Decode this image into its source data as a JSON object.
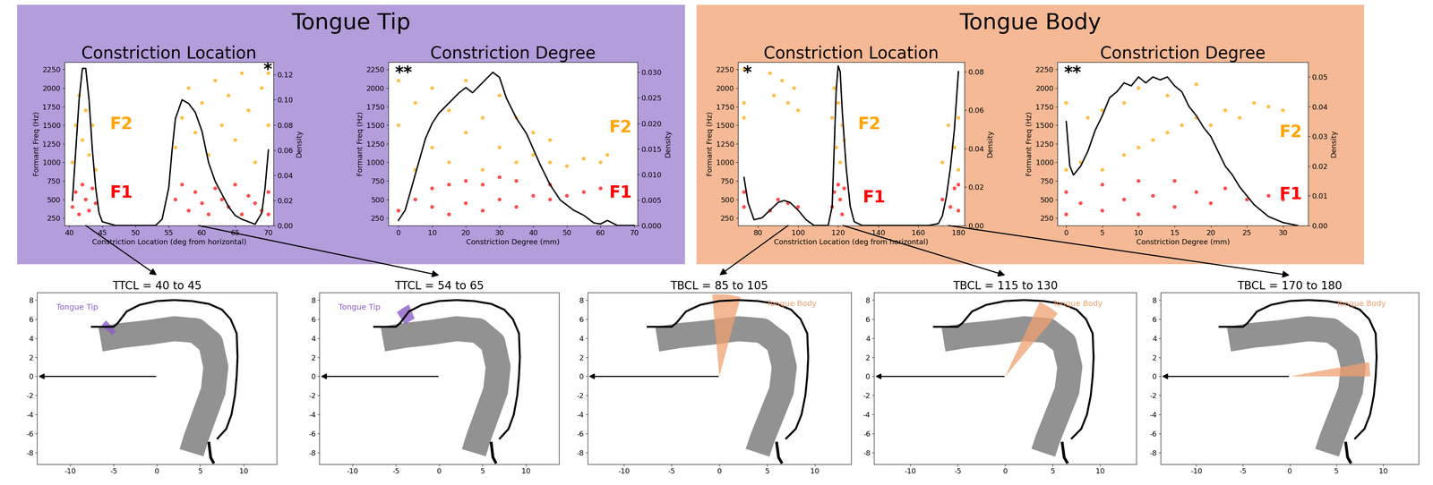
{
  "headers": [
    {
      "text": "Tongue Tip",
      "color": "#b39ddb"
    },
    {
      "text": "Tongue Body",
      "color": "#f5b995"
    }
  ],
  "chart_data": [
    {
      "type": "scatter",
      "title": "Constriction Location",
      "xlabel": "Constriction Location (deg from horizontal)",
      "ylabel": "Formant Freq (Hz)",
      "y2label": "Density",
      "xlim": [
        39.3,
        70.8
      ],
      "xticks": [
        40,
        45,
        50,
        55,
        60,
        65,
        70
      ],
      "ylim": [
        150,
        2350
      ],
      "yticks": [
        250,
        500,
        750,
        1000,
        1250,
        1500,
        1750,
        2000,
        2250
      ],
      "y2lim": [
        0,
        0.13
      ],
      "y2ticks": [
        {
          "value": 0,
          "label": "0.00"
        },
        {
          "value": 0.02,
          "label": "0.02"
        },
        {
          "value": 0.04,
          "label": "0.04"
        },
        {
          "value": 0.06,
          "label": "0.06"
        },
        {
          "value": 0.08,
          "label": "0.08"
        },
        {
          "value": 0.1,
          "label": "0.10"
        },
        {
          "value": 0.12,
          "label": "0.12"
        }
      ],
      "annotations": [
        "*"
      ],
      "series": [
        {
          "name": "F2",
          "type": "scatter",
          "color": "#ffa500",
          "x": [
            40.5,
            41,
            41.5,
            42,
            42.5,
            43,
            43.5,
            44,
            56,
            57,
            58,
            59,
            60,
            61,
            62,
            63,
            64,
            65,
            66,
            67,
            68,
            69,
            70,
            70
          ],
          "y": [
            1000,
            1500,
            1900,
            1300,
            1700,
            1100,
            1500,
            900,
            1200,
            1600,
            2000,
            1400,
            1800,
            1100,
            2100,
            1500,
            1900,
            1300,
            2200,
            1700,
            1000,
            2000,
            1500,
            2200
          ]
        },
        {
          "name": "F1",
          "type": "scatter",
          "color": "#ff0000",
          "x": [
            40.5,
            41,
            41.5,
            42,
            42.5,
            43,
            43.5,
            44,
            56,
            57,
            58,
            59,
            60,
            61,
            62,
            63,
            64,
            65,
            66,
            67,
            68,
            69,
            70,
            70
          ],
          "y": [
            400,
            600,
            300,
            700,
            500,
            350,
            650,
            450,
            500,
            700,
            350,
            600,
            450,
            300,
            650,
            500,
            400,
            700,
            300,
            550,
            450,
            350,
            600,
            300
          ]
        },
        {
          "type": "line",
          "axis": "y2",
          "color": "#000000",
          "x": [
            40.5,
            41,
            41.5,
            42,
            42.5,
            43,
            43.5,
            44,
            44.5,
            45,
            47,
            50,
            53,
            54,
            55,
            55.5,
            56,
            57,
            58,
            59,
            60,
            61,
            62,
            63,
            64,
            65,
            66,
            68,
            69,
            69.5,
            70
          ],
          "y": [
            0.02,
            0.06,
            0.1,
            0.125,
            0.125,
            0.1,
            0.06,
            0.03,
            0.01,
            0.003,
            0,
            0,
            0,
            0.005,
            0.03,
            0.06,
            0.085,
            0.1,
            0.097,
            0.09,
            0.075,
            0.05,
            0.035,
            0.025,
            0.015,
            0.008,
            0.005,
            0.001,
            0.01,
            0.03,
            0.06
          ]
        }
      ]
    },
    {
      "type": "scatter",
      "title": "Constriction Degree",
      "xlabel": "Constriction Degree (mm)",
      "ylabel": "Formant Freq (Hz)",
      "y2label": "Density",
      "xlim": [
        -3,
        71
      ],
      "xticks": [
        0,
        10,
        20,
        30,
        40,
        50,
        60,
        70
      ],
      "ylim": [
        150,
        2350
      ],
      "yticks": [
        250,
        500,
        750,
        1000,
        1250,
        1500,
        1750,
        2000,
        2250
      ],
      "y2lim": [
        0,
        0.032
      ],
      "y2ticks": [
        {
          "value": 0,
          "label": "0.000"
        },
        {
          "value": 0.005,
          "label": "0.005"
        },
        {
          "value": 0.01,
          "label": "0.010"
        },
        {
          "value": 0.015,
          "label": "0.015"
        },
        {
          "value": 0.02,
          "label": "0.020"
        },
        {
          "value": 0.025,
          "label": "0.025"
        },
        {
          "value": 0.03,
          "label": "0.030"
        }
      ],
      "annotations": [
        "**"
      ],
      "series": [
        {
          "name": "F2",
          "type": "scatter",
          "color": "#ffa500",
          "x": [
            0,
            0,
            5,
            5,
            10,
            10,
            15,
            15,
            20,
            20,
            25,
            25,
            30,
            30,
            35,
            35,
            40,
            40,
            45,
            45,
            50,
            55,
            60,
            62
          ],
          "y": [
            1500,
            2100,
            900,
            1800,
            1200,
            2000,
            1000,
            1700,
            1400,
            2100,
            900,
            1600,
            1200,
            1900,
            1000,
            1600,
            1100,
            1400,
            1000,
            1300,
            950,
            1050,
            1000,
            1100
          ]
        },
        {
          "name": "F1",
          "type": "scatter",
          "color": "#ff0000",
          "x": [
            0,
            5,
            10,
            10,
            15,
            15,
            20,
            20,
            25,
            25,
            30,
            30,
            35,
            35,
            40,
            45,
            45,
            50,
            55,
            60
          ],
          "y": [
            350,
            500,
            400,
            650,
            300,
            700,
            450,
            750,
            350,
            700,
            500,
            800,
            400,
            750,
            550,
            500,
            700,
            550,
            600,
            650
          ]
        },
        {
          "type": "line",
          "axis": "y2",
          "color": "#000000",
          "x": [
            0,
            2,
            5,
            8,
            10,
            12,
            15,
            18,
            20,
            22,
            25,
            28,
            30,
            32,
            35,
            38,
            40,
            42,
            45,
            48,
            50,
            52,
            55,
            58,
            60,
            62,
            65,
            70
          ],
          "y": [
            0.001,
            0.003,
            0.01,
            0.017,
            0.02,
            0.022,
            0.024,
            0.026,
            0.027,
            0.026,
            0.028,
            0.03,
            0.029,
            0.025,
            0.021,
            0.018,
            0.015,
            0.012,
            0.008,
            0.005,
            0.004,
            0.003,
            0.002,
            0.0005,
            0.0003,
            0.001,
            0,
            0
          ]
        }
      ]
    },
    {
      "type": "scatter",
      "title": "Constriction Location",
      "xlabel": "Constriction Location (deg from horizontal)",
      "ylabel": "Formant Freq (Hz)",
      "y2label": "Density",
      "xlim": [
        70,
        183
      ],
      "xticks": [
        80,
        100,
        120,
        140,
        160,
        180
      ],
      "ylim": [
        150,
        2350
      ],
      "yticks": [
        250,
        500,
        750,
        1000,
        1250,
        1500,
        1750,
        2000,
        2250
      ],
      "y2lim": [
        0,
        0.085
      ],
      "y2ticks": [
        {
          "value": 0,
          "label": "0.00"
        },
        {
          "value": 0.02,
          "label": "0.02"
        },
        {
          "value": 0.04,
          "label": "0.04"
        },
        {
          "value": 0.06,
          "label": "0.06"
        },
        {
          "value": 0.08,
          "label": "0.08"
        }
      ],
      "annotations": [
        "*"
      ],
      "series": [
        {
          "name": "F2",
          "type": "scatter",
          "color": "#ffa500",
          "x": [
            73,
            73,
            73,
            86,
            88,
            92,
            95,
            98,
            100,
            117,
            118,
            119,
            120,
            121,
            122,
            123,
            172,
            175,
            178,
            180,
            180
          ],
          "y": [
            1800,
            2250,
            1600,
            2200,
            1900,
            2100,
            1800,
            2000,
            1700,
            1600,
            2000,
            1200,
            1800,
            1000,
            1500,
            1300,
            1000,
            1500,
            1200,
            1600,
            900
          ]
        },
        {
          "name": "F1",
          "type": "scatter",
          "color": "#ff0000",
          "x": [
            73,
            73,
            86,
            90,
            95,
            100,
            117,
            118,
            120,
            121,
            122,
            123,
            172,
            176,
            178,
            180,
            180
          ],
          "y": [
            400,
            600,
            350,
            500,
            450,
            400,
            400,
            600,
            700,
            500,
            300,
            650,
            500,
            400,
            650,
            700,
            350
          ]
        },
        {
          "type": "line",
          "axis": "y2",
          "color": "#000000",
          "x": [
            73,
            75,
            78,
            82,
            86,
            90,
            93,
            96,
            100,
            104,
            108,
            115,
            117,
            118,
            119,
            120,
            121,
            122,
            124,
            126,
            128,
            132,
            165,
            170,
            172,
            174,
            176,
            178,
            180
          ],
          "y": [
            0.025,
            0.012,
            0.003,
            0.004,
            0.008,
            0.012,
            0.013,
            0.012,
            0.008,
            0.003,
            0,
            0,
            0.01,
            0.04,
            0.07,
            0.083,
            0.08,
            0.06,
            0.03,
            0.01,
            0.002,
            0,
            0,
            0.001,
            0.005,
            0.015,
            0.03,
            0.05,
            0.08
          ]
        }
      ]
    },
    {
      "type": "scatter",
      "title": "Constriction Degree",
      "xlabel": "Constriction Degree (mm)",
      "ylabel": "Formant Freq (Hz)",
      "y2label": "Density",
      "xlim": [
        -1.2,
        33.5
      ],
      "xticks": [
        0,
        5,
        10,
        15,
        20,
        25,
        30
      ],
      "ylim": [
        150,
        2350
      ],
      "yticks": [
        250,
        500,
        750,
        1000,
        1250,
        1500,
        1750,
        2000,
        2250
      ],
      "y2lim": [
        0,
        0.055
      ],
      "y2ticks": [
        {
          "value": 0,
          "label": "0.00"
        },
        {
          "value": 0.01,
          "label": "0.01"
        },
        {
          "value": 0.02,
          "label": "0.02"
        },
        {
          "value": 0.03,
          "label": "0.03"
        },
        {
          "value": 0.04,
          "label": "0.04"
        },
        {
          "value": 0.05,
          "label": "0.05"
        }
      ],
      "annotations": [
        "**"
      ],
      "series": [
        {
          "name": "F2",
          "type": "scatter",
          "color": "#ffa500",
          "x": [
            0,
            0,
            2,
            3,
            5,
            5,
            8,
            8,
            10,
            10,
            12,
            14,
            14,
            16,
            18,
            18,
            20,
            22,
            24,
            26,
            28,
            30
          ],
          "y": [
            900,
            1800,
            1000,
            1600,
            900,
            1700,
            1100,
            1800,
            1200,
            2000,
            1300,
            1400,
            1900,
            1500,
            1600,
            2050,
            1500,
            1700,
            1600,
            1800,
            1750,
            1700
          ]
        },
        {
          "name": "F1",
          "type": "scatter",
          "color": "#ff0000",
          "x": [
            0,
            0,
            2,
            5,
            5,
            8,
            10,
            10,
            12,
            15,
            15,
            18,
            20,
            22,
            25,
            28,
            30
          ],
          "y": [
            300,
            600,
            450,
            350,
            700,
            500,
            300,
            750,
            550,
            400,
            750,
            600,
            450,
            650,
            500,
            550,
            500
          ]
        },
        {
          "type": "line",
          "axis": "y2",
          "color": "#000000",
          "x": [
            0,
            0.5,
            1,
            2,
            3,
            4,
            5,
            6,
            7,
            8,
            9,
            10,
            11,
            12,
            13,
            14,
            15,
            16,
            17,
            18,
            19,
            20,
            21,
            22,
            23,
            24,
            25,
            26,
            27,
            28,
            29,
            30,
            31,
            32
          ],
          "y": [
            0.035,
            0.02,
            0.017,
            0.02,
            0.025,
            0.032,
            0.037,
            0.043,
            0.045,
            0.048,
            0.047,
            0.05,
            0.048,
            0.05,
            0.049,
            0.05,
            0.047,
            0.045,
            0.04,
            0.037,
            0.033,
            0.03,
            0.025,
            0.02,
            0.017,
            0.013,
            0.01,
            0.007,
            0.005,
            0.003,
            0.002,
            0.001,
            0.0005,
            0
          ]
        }
      ]
    }
  ],
  "vocal_tract": {
    "xlim": [
      -13.8,
      13.8
    ],
    "ylim": [
      -9.2,
      8.8
    ],
    "xticks": [
      -10,
      -5,
      0,
      5,
      10
    ],
    "yticks": [
      -8,
      -6,
      -4,
      -2,
      0,
      2,
      4,
      6,
      8
    ],
    "origin": [
      0,
      0
    ],
    "outline": {
      "x": [
        -7.5,
        -5,
        -4.5,
        -3.5,
        -2,
        0,
        2,
        4,
        6,
        7.5,
        8.5,
        9.2,
        9.3,
        9.2,
        9,
        8.6,
        8,
        7
      ],
      "y": [
        5.2,
        5.2,
        5.6,
        6.8,
        7.5,
        7.9,
        8.0,
        7.9,
        7.6,
        7.0,
        6.0,
        4.5,
        2,
        0,
        -2,
        -4,
        -5.5,
        -6.5
      ]
    },
    "larynx": {
      "x": [
        6,
        6.2,
        6.5
      ],
      "y": [
        -7,
        -8.5,
        -9
      ]
    },
    "tongue": {
      "x": [
        -6.5,
        -4,
        -1,
        2,
        4.5,
        6.2,
        6.8,
        6.5,
        5.5,
        4.5,
        4
      ],
      "y": [
        3.9,
        4.3,
        4.6,
        5.0,
        4.8,
        3.5,
        1,
        -1.5,
        -4,
        -6.5,
        -8
      ]
    },
    "panels": [
      {
        "title": "TTCL = 40 to 45",
        "label": "Tongue Tip",
        "cl_range": [
          40,
          45
        ],
        "color": "#8e5cc9"
      },
      {
        "title": "TTCL = 54 to 65",
        "label": "Tongue Tip",
        "cl_range": [
          54,
          65
        ],
        "color": "#8e5cc9"
      },
      {
        "title": "TBCL = 85 to 105",
        "label": "Tongue Body",
        "cl_range": [
          85,
          105
        ],
        "color": "#f0a070"
      },
      {
        "title": "TBCL = 115 to 130",
        "label": "Tongue Body",
        "cl_range": [
          115,
          130
        ],
        "color": "#f0a070"
      },
      {
        "title": "TBCL = 170 to 180",
        "label": "Tongue Body",
        "cl_range": [
          170,
          180
        ],
        "color": "#f0a070"
      }
    ]
  }
}
